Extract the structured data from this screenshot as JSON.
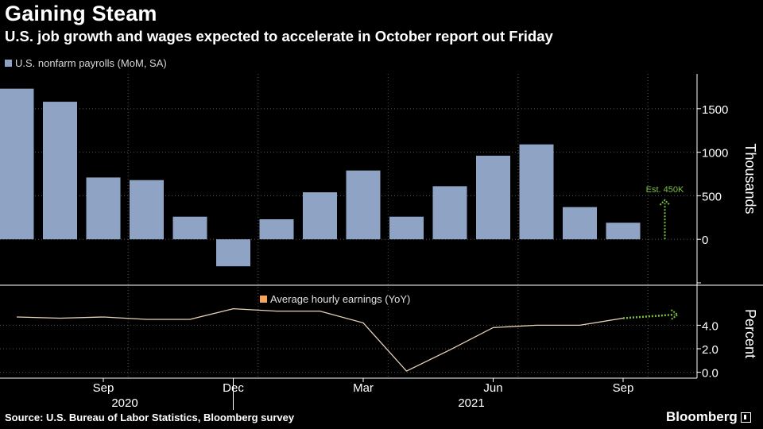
{
  "title": "Gaining Steam",
  "subtitle": "U.S. job growth and wages expected to accelerate in October report out Friday",
  "source": "Source: U.S. Bureau of Labor Statistics, Bloomberg survey",
  "brand": "Bloomberg",
  "colors": {
    "bar": "#8fa3c4",
    "line": "#e8d2b8",
    "estimate": "#7bc043",
    "legend_line": "#f5a45c"
  },
  "chart_data": [
    {
      "type": "bar",
      "title": "U.S. nonfarm payrolls (MoM, SA)",
      "legend": "U.S. nonfarm payrolls (MoM, SA)",
      "ylabel": "Thousands",
      "ylim": [
        -500,
        1900
      ],
      "yticks": [
        0,
        500,
        1000,
        1500
      ],
      "categories": [
        "2020-07",
        "2020-08",
        "2020-09",
        "2020-10",
        "2020-11",
        "2020-12",
        "2021-01",
        "2021-02",
        "2021-03",
        "2021-04",
        "2021-05",
        "2021-06",
        "2021-07",
        "2021-08",
        "2021-09",
        "2021-10"
      ],
      "values": [
        1730,
        1580,
        710,
        680,
        260,
        -310,
        230,
        540,
        790,
        260,
        610,
        960,
        1090,
        370,
        190,
        null
      ],
      "estimate": {
        "category": "2021-10",
        "value": 450,
        "label": "Est. 450K"
      }
    },
    {
      "type": "line",
      "title": "Average hourly earnings (YoY)",
      "legend": "Average hourly earnings (YoY)",
      "ylabel": "Percent",
      "ylim": [
        -0.5,
        7.2
      ],
      "yticks": [
        "0.0",
        "2.0",
        "4.0"
      ],
      "categories": [
        "2020-07",
        "2020-08",
        "2020-09",
        "2020-10",
        "2020-11",
        "2020-12",
        "2021-01",
        "2021-02",
        "2021-03",
        "2021-04",
        "2021-05",
        "2021-06",
        "2021-07",
        "2021-08",
        "2021-09"
      ],
      "values": [
        4.7,
        4.6,
        4.7,
        4.5,
        4.5,
        5.4,
        5.2,
        5.2,
        4.2,
        0.1,
        1.9,
        3.8,
        4.0,
        4.0,
        4.6
      ],
      "estimate": {
        "from": "2021-09",
        "to": "2021-10",
        "value": 4.9
      }
    }
  ],
  "xaxis": {
    "month_labels": [
      {
        "category": "2020-09",
        "label": "Sep"
      },
      {
        "category": "2020-12",
        "label": "Dec"
      },
      {
        "category": "2021-03",
        "label": "Mar"
      },
      {
        "category": "2021-06",
        "label": "Jun"
      },
      {
        "category": "2021-09",
        "label": "Sep"
      }
    ],
    "year_labels": [
      {
        "category": "2020-09",
        "label": "2020"
      },
      {
        "category": "2021-05",
        "label": "2021"
      }
    ]
  }
}
